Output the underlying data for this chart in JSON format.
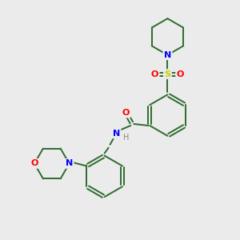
{
  "background_color": "#ebebeb",
  "bond_color": "#2d6b2d",
  "atom_colors": {
    "N": "#0000ff",
    "O": "#ff0000",
    "S": "#cccc00",
    "C": "#2d6b2d",
    "H": "#888888"
  },
  "figsize": [
    3.0,
    3.0
  ],
  "dpi": 100
}
